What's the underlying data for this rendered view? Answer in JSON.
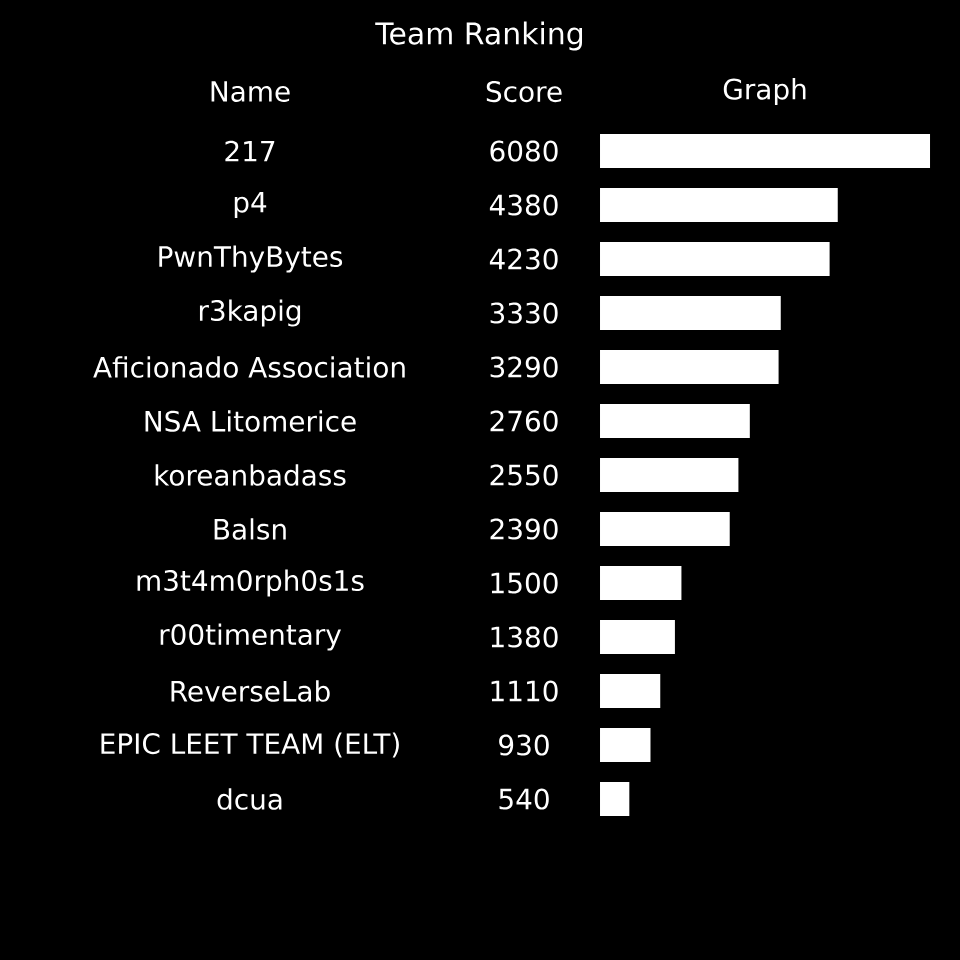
{
  "chart_data": {
    "type": "bar",
    "orientation": "horizontal",
    "title": "Team Ranking",
    "annotations": [
      "Name",
      "Score",
      "Graph"
    ],
    "categories": [
      "217",
      "p4",
      "PwnThyBytes",
      "r3kapig",
      "Aficionado Association",
      "NSA Litomerice",
      "koreanbadass",
      "Balsn",
      "m3t4m0rph0s1s",
      "r00timentary",
      "ReverseLab",
      "EPIC LEET TEAM (ELT)",
      "dcua"
    ],
    "values": [
      6080,
      4380,
      4230,
      3330,
      3290,
      2760,
      2550,
      2390,
      1500,
      1380,
      1110,
      930,
      540
    ],
    "color": "#ffffff",
    "data_labels": true
  }
}
